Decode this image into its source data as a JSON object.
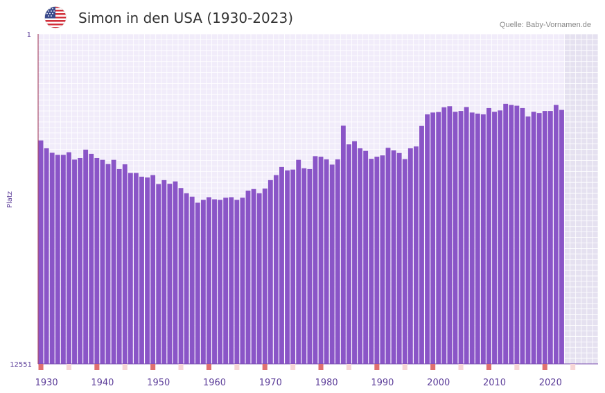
{
  "header": {
    "title": "Simon in den USA (1930-2023)",
    "source": "Quelle: Baby-Vornamen.de",
    "flag_icon": "us-flag-icon"
  },
  "colors": {
    "bar": "#8a55c7",
    "plot_bg": "#f1ecfa",
    "future_bg": "#e5e1f0",
    "grid": "#ffffff",
    "axis_line": "#9c2c4c",
    "decade_marker": "#e07070",
    "label": "#5c3d99"
  },
  "chart_data": {
    "type": "bar",
    "title": "Simon in den USA (1930-2023)",
    "xlabel": "",
    "ylabel": "Platz",
    "y_inverted": true,
    "ylim": [
      1,
      12551
    ],
    "y_ticks": [
      "1",
      "12551"
    ],
    "x_ticks": [
      "1930",
      "1940",
      "1950",
      "1960",
      "1970",
      "1980",
      "1990",
      "2000",
      "2010",
      "2020"
    ],
    "x_range": [
      1929,
      2029
    ],
    "years": [
      1929,
      1930,
      1931,
      1932,
      1933,
      1934,
      1935,
      1936,
      1937,
      1938,
      1939,
      1940,
      1941,
      1942,
      1943,
      1944,
      1945,
      1946,
      1947,
      1948,
      1949,
      1950,
      1951,
      1952,
      1953,
      1954,
      1955,
      1956,
      1957,
      1958,
      1959,
      1960,
      1961,
      1962,
      1963,
      1964,
      1965,
      1966,
      1967,
      1968,
      1969,
      1970,
      1971,
      1972,
      1973,
      1974,
      1975,
      1976,
      1977,
      1978,
      1979,
      1980,
      1981,
      1982,
      1983,
      1984,
      1985,
      1986,
      1987,
      1988,
      1989,
      1990,
      1991,
      1992,
      1993,
      1994,
      1995,
      1996,
      1997,
      1998,
      1999,
      2000,
      2001,
      2002,
      2003,
      2004,
      2005,
      2006,
      2007,
      2008,
      2009,
      2010,
      2011,
      2012,
      2013,
      2014,
      2015,
      2016,
      2017,
      2018,
      2019,
      2020,
      2021,
      2022
    ],
    "values": [
      4050,
      4350,
      4520,
      4600,
      4600,
      4500,
      4780,
      4720,
      4400,
      4560,
      4720,
      4790,
      4950,
      4790,
      5140,
      4960,
      5290,
      5290,
      5430,
      5460,
      5370,
      5710,
      5560,
      5700,
      5610,
      5860,
      6060,
      6190,
      6420,
      6310,
      6210,
      6290,
      6310,
      6230,
      6210,
      6310,
      6230,
      5960,
      5900,
      6060,
      5880,
      5560,
      5370,
      5060,
      5190,
      5160,
      4790,
      5110,
      5140,
      4650,
      4670,
      4770,
      4970,
      4770,
      3490,
      4200,
      4080,
      4350,
      4450,
      4750,
      4670,
      4620,
      4330,
      4430,
      4530,
      4760,
      4350,
      4280,
      3500,
      3060,
      2990,
      2970,
      2790,
      2750,
      2960,
      2930,
      2780,
      2990,
      3030,
      3060,
      2820,
      2960,
      2910,
      2660,
      2700,
      2730,
      2820,
      3140,
      2960,
      3010,
      2930,
      2930,
      2700,
      2890
    ],
    "future_start_year": 2022
  }
}
